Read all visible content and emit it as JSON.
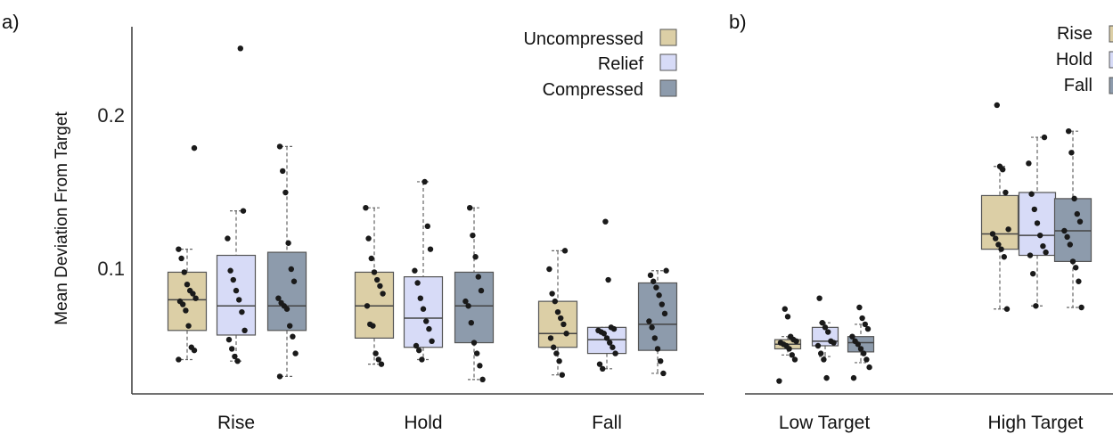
{
  "colors": {
    "Uncompressed": "#dccfa6",
    "Relief": "#d7dbf7",
    "Compressed": "#8d9bac",
    "axis": "#444444",
    "point": "#1a1a1a"
  },
  "chart_data": [
    {
      "type": "box",
      "panel_label": "a)",
      "categories": [
        "Rise",
        "Hold",
        "Fall"
      ],
      "ylabel": "Mean Deviation From Target",
      "yticks": [
        "0.1",
        "0.2"
      ],
      "ylim": [
        0.01,
        0.255
      ],
      "legend": {
        "placement": "top-right",
        "entries": [
          "Uncompressed",
          "Relief",
          "Compressed"
        ]
      },
      "series": [
        {
          "name": "Uncompressed",
          "boxes": [
            {
              "category": "Rise",
              "whisker_low": 0.041,
              "q1": 0.06,
              "median": 0.08,
              "q3": 0.098,
              "whisker_high": 0.113,
              "points": [
                0.041,
                0.047,
                0.049,
                0.063,
                0.073,
                0.077,
                0.079,
                0.081,
                0.084,
                0.086,
                0.09,
                0.098,
                0.107,
                0.113,
                0.179
              ]
            },
            {
              "category": "Hold",
              "whisker_low": 0.038,
              "q1": 0.055,
              "median": 0.076,
              "q3": 0.098,
              "whisker_high": 0.14,
              "points": [
                0.038,
                0.041,
                0.045,
                0.063,
                0.064,
                0.076,
                0.084,
                0.089,
                0.093,
                0.098,
                0.107,
                0.12,
                0.14
              ]
            },
            {
              "category": "Fall",
              "whisker_low": 0.031,
              "q1": 0.049,
              "median": 0.058,
              "q3": 0.079,
              "whisker_high": 0.112,
              "points": [
                0.031,
                0.04,
                0.045,
                0.049,
                0.055,
                0.058,
                0.064,
                0.068,
                0.072,
                0.079,
                0.084,
                0.1,
                0.112
              ]
            }
          ]
        },
        {
          "name": "Relief",
          "boxes": [
            {
              "category": "Rise",
              "whisker_low": 0.04,
              "q1": 0.057,
              "median": 0.076,
              "q3": 0.109,
              "whisker_high": 0.138,
              "points": [
                0.04,
                0.043,
                0.048,
                0.054,
                0.06,
                0.072,
                0.08,
                0.086,
                0.093,
                0.099,
                0.12,
                0.138,
                0.244
              ]
            },
            {
              "category": "Hold",
              "whisker_low": 0.041,
              "q1": 0.049,
              "median": 0.068,
              "q3": 0.095,
              "whisker_high": 0.157,
              "points": [
                0.041,
                0.047,
                0.05,
                0.053,
                0.061,
                0.066,
                0.074,
                0.081,
                0.091,
                0.099,
                0.113,
                0.128,
                0.157
              ]
            },
            {
              "category": "Fall",
              "whisker_low": 0.035,
              "q1": 0.045,
              "median": 0.054,
              "q3": 0.062,
              "whisker_high": 0.062,
              "points": [
                0.035,
                0.038,
                0.045,
                0.049,
                0.052,
                0.055,
                0.058,
                0.059,
                0.06,
                0.061,
                0.062,
                0.093,
                0.131
              ]
            }
          ]
        },
        {
          "name": "Compressed",
          "boxes": [
            {
              "category": "Rise",
              "whisker_low": 0.03,
              "q1": 0.06,
              "median": 0.076,
              "q3": 0.111,
              "whisker_high": 0.18,
              "points": [
                0.03,
                0.045,
                0.056,
                0.063,
                0.074,
                0.076,
                0.078,
                0.081,
                0.092,
                0.1,
                0.117,
                0.15,
                0.164,
                0.18
              ]
            },
            {
              "category": "Hold",
              "whisker_low": 0.028,
              "q1": 0.052,
              "median": 0.076,
              "q3": 0.098,
              "whisker_high": 0.14,
              "points": [
                0.028,
                0.037,
                0.045,
                0.052,
                0.065,
                0.076,
                0.079,
                0.086,
                0.095,
                0.108,
                0.122,
                0.14
              ]
            },
            {
              "category": "Fall",
              "whisker_low": 0.032,
              "q1": 0.047,
              "median": 0.064,
              "q3": 0.091,
              "whisker_high": 0.099,
              "points": [
                0.032,
                0.04,
                0.048,
                0.055,
                0.062,
                0.066,
                0.071,
                0.077,
                0.083,
                0.088,
                0.092,
                0.096,
                0.099
              ]
            }
          ]
        }
      ]
    },
    {
      "type": "box",
      "panel_label": "b)",
      "categories": [
        "Low Target",
        "High Target"
      ],
      "ylim": [
        0.01,
        0.255
      ],
      "legend": {
        "placement": "top-right",
        "entries": [
          "Rise",
          "Hold",
          "Fall"
        ]
      },
      "series": [
        {
          "name": "Rise",
          "boxes": [
            {
              "category": "Low Target",
              "whisker_low": 0.044,
              "q1": 0.048,
              "median": 0.051,
              "q3": 0.054,
              "whisker_high": 0.056,
              "points": [
                0.027,
                0.041,
                0.044,
                0.048,
                0.05,
                0.051,
                0.052,
                0.053,
                0.054,
                0.056,
                0.069,
                0.074
              ]
            },
            {
              "category": "High Target",
              "whisker_low": 0.074,
              "q1": 0.113,
              "median": 0.123,
              "q3": 0.148,
              "whisker_high": 0.167,
              "points": [
                0.074,
                0.108,
                0.113,
                0.116,
                0.12,
                0.123,
                0.126,
                0.15,
                0.165,
                0.167,
                0.207
              ]
            }
          ]
        },
        {
          "name": "Hold",
          "boxes": [
            {
              "category": "Low Target",
              "whisker_low": 0.043,
              "q1": 0.05,
              "median": 0.053,
              "q3": 0.062,
              "whisker_high": 0.065,
              "points": [
                0.029,
                0.041,
                0.045,
                0.05,
                0.052,
                0.053,
                0.059,
                0.062,
                0.065,
                0.081
              ]
            },
            {
              "category": "High Target",
              "whisker_low": 0.076,
              "q1": 0.109,
              "median": 0.122,
              "q3": 0.15,
              "whisker_high": 0.186,
              "points": [
                0.076,
                0.097,
                0.109,
                0.111,
                0.115,
                0.122,
                0.13,
                0.139,
                0.149,
                0.169,
                0.186
              ]
            }
          ]
        },
        {
          "name": "Fall",
          "boxes": [
            {
              "category": "Low Target",
              "whisker_low": 0.039,
              "q1": 0.046,
              "median": 0.052,
              "q3": 0.056,
              "whisker_high": 0.064,
              "points": [
                0.029,
                0.036,
                0.041,
                0.045,
                0.048,
                0.051,
                0.053,
                0.056,
                0.061,
                0.064,
                0.068,
                0.075
              ]
            },
            {
              "category": "High Target",
              "whisker_low": 0.075,
              "q1": 0.105,
              "median": 0.125,
              "q3": 0.146,
              "whisker_high": 0.19,
              "points": [
                0.075,
                0.092,
                0.101,
                0.105,
                0.116,
                0.121,
                0.125,
                0.131,
                0.136,
                0.146,
                0.176,
                0.19
              ]
            }
          ]
        }
      ]
    }
  ]
}
